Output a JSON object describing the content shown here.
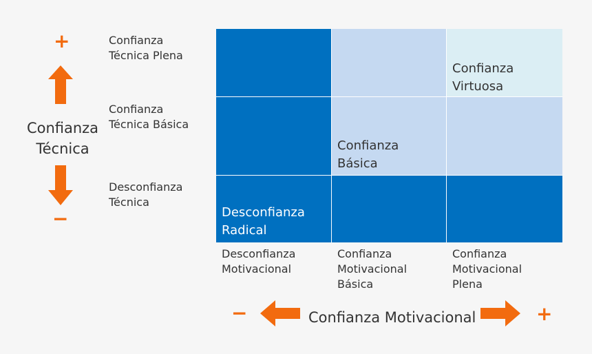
{
  "y_axis": {
    "plus": "+",
    "label_line1": "Confianza",
    "label_line2": "Técnica",
    "minus": "−"
  },
  "row_labels": [
    {
      "line1": "Confianza",
      "line2": "Técnica Plena"
    },
    {
      "line1": "Confianza",
      "line2": "Técnica Básica"
    },
    {
      "line1": "Desconfianza",
      "line2": "Técnica"
    }
  ],
  "col_labels": [
    {
      "line1": "Desconfianza",
      "line2": "Motivacional",
      "line3": ""
    },
    {
      "line1": "Confianza",
      "line2": "Motivacional",
      "line3": "Básica"
    },
    {
      "line1": "Confianza",
      "line2": "Motivacional",
      "line3": "Plena"
    }
  ],
  "x_axis": {
    "minus": "−",
    "label": "Confianza Motivacional",
    "plus": "+"
  },
  "cells": {
    "virtuosa": {
      "line1": "Confianza",
      "line2": "Virtuosa"
    },
    "basica": {
      "line1": "Confianza",
      "line2": "Básica"
    },
    "radical": {
      "line1": "Desconfianza",
      "line2": "Radical"
    }
  },
  "colors": {
    "accent_orange": "#f26b0f",
    "dark_blue": "#0070c0",
    "light_blue": "#c5d9f1",
    "lightest_blue": "#dbeef4"
  }
}
